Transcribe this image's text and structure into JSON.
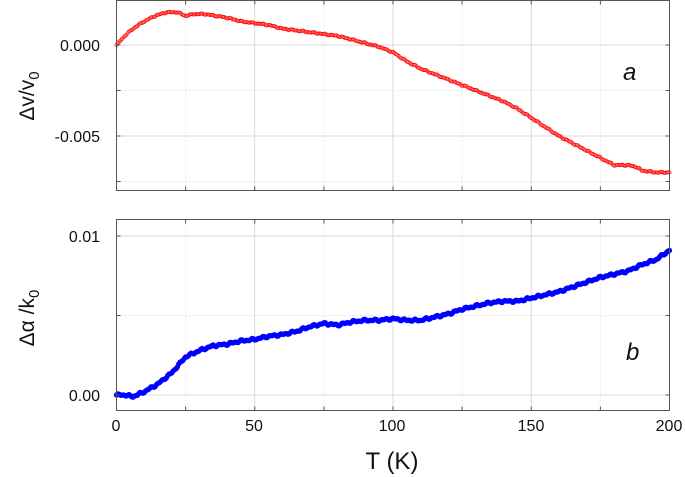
{
  "figure": {
    "xlabel": "T (K)",
    "x_ticks": [
      "0",
      "50",
      "100",
      "150",
      "200"
    ],
    "panels": [
      {
        "letter": "a",
        "ylabel": "Δv/v",
        "ylabel_sub": "0",
        "y_ticks": [
          "0.000",
          "-0.005"
        ],
        "color": "#ff0000"
      },
      {
        "letter": "b",
        "ylabel": "Δα /k",
        "ylabel_sub": "0",
        "y_ticks": [
          "0.01",
          "0.00"
        ],
        "color": "#0000ff"
      }
    ]
  },
  "chart_data": [
    {
      "type": "scatter",
      "title": "",
      "panel": "a",
      "xlabel": "T (K)",
      "ylabel": "Δv/v0",
      "xlim": [
        0,
        200
      ],
      "ylim": [
        -0.0075,
        0.0025
      ],
      "grid": true,
      "marker": "open circles",
      "series": [
        {
          "name": "Δv/v0",
          "color": "#ff0000",
          "x": [
            0,
            3,
            6,
            10,
            14,
            18,
            22,
            25,
            28,
            32,
            36,
            40,
            45,
            50,
            55,
            60,
            65,
            70,
            75,
            80,
            85,
            90,
            95,
            100,
            105,
            110,
            115,
            120,
            125,
            130,
            135,
            140,
            145,
            150,
            155,
            160,
            165,
            170,
            175,
            180,
            185,
            188,
            190,
            195,
            200
          ],
          "values": [
            0.0,
            0.0005,
            0.0009,
            0.0013,
            0.0016,
            0.0018,
            0.0018,
            0.0016,
            0.0017,
            0.0017,
            0.0016,
            0.0015,
            0.0013,
            0.0012,
            0.0011,
            0.0009,
            0.0008,
            0.0007,
            0.0006,
            0.0005,
            0.0003,
            0.0001,
            -0.0001,
            -0.0004,
            -0.0009,
            -0.0013,
            -0.0016,
            -0.0019,
            -0.0022,
            -0.0025,
            -0.0028,
            -0.0031,
            -0.0035,
            -0.004,
            -0.0045,
            -0.005,
            -0.0054,
            -0.0058,
            -0.0062,
            -0.0066,
            -0.0066,
            -0.0067,
            -0.0069,
            -0.007,
            -0.007
          ]
        }
      ],
      "annotations": [
        "a"
      ]
    },
    {
      "type": "scatter",
      "title": "",
      "panel": "b",
      "xlabel": "T (K)",
      "ylabel": "Δα /k0",
      "xlim": [
        0,
        200
      ],
      "ylim": [
        -0.001,
        0.0111
      ],
      "grid": true,
      "marker": "filled circles",
      "series": [
        {
          "name": "Δα /k0",
          "color": "#0000ff",
          "x": [
            0,
            3,
            6,
            10,
            15,
            20,
            25,
            30,
            35,
            40,
            45,
            50,
            55,
            60,
            65,
            70,
            75,
            80,
            85,
            90,
            95,
            100,
            105,
            110,
            115,
            120,
            125,
            130,
            135,
            140,
            145,
            150,
            155,
            160,
            165,
            170,
            175,
            180,
            185,
            190,
            195,
            200
          ],
          "values": [
            0.0,
            0.0,
            -0.0001,
            0.0002,
            0.0007,
            0.0014,
            0.0024,
            0.0028,
            0.0031,
            0.0032,
            0.0034,
            0.0035,
            0.0037,
            0.0038,
            0.004,
            0.0043,
            0.0045,
            0.0044,
            0.0046,
            0.0047,
            0.0047,
            0.0048,
            0.0047,
            0.0047,
            0.0049,
            0.0051,
            0.0054,
            0.0056,
            0.0058,
            0.0059,
            0.0059,
            0.0061,
            0.0063,
            0.0065,
            0.0068,
            0.0071,
            0.0074,
            0.0076,
            0.0078,
            0.0082,
            0.0085,
            0.0091
          ]
        }
      ],
      "annotations": [
        "b"
      ]
    }
  ]
}
